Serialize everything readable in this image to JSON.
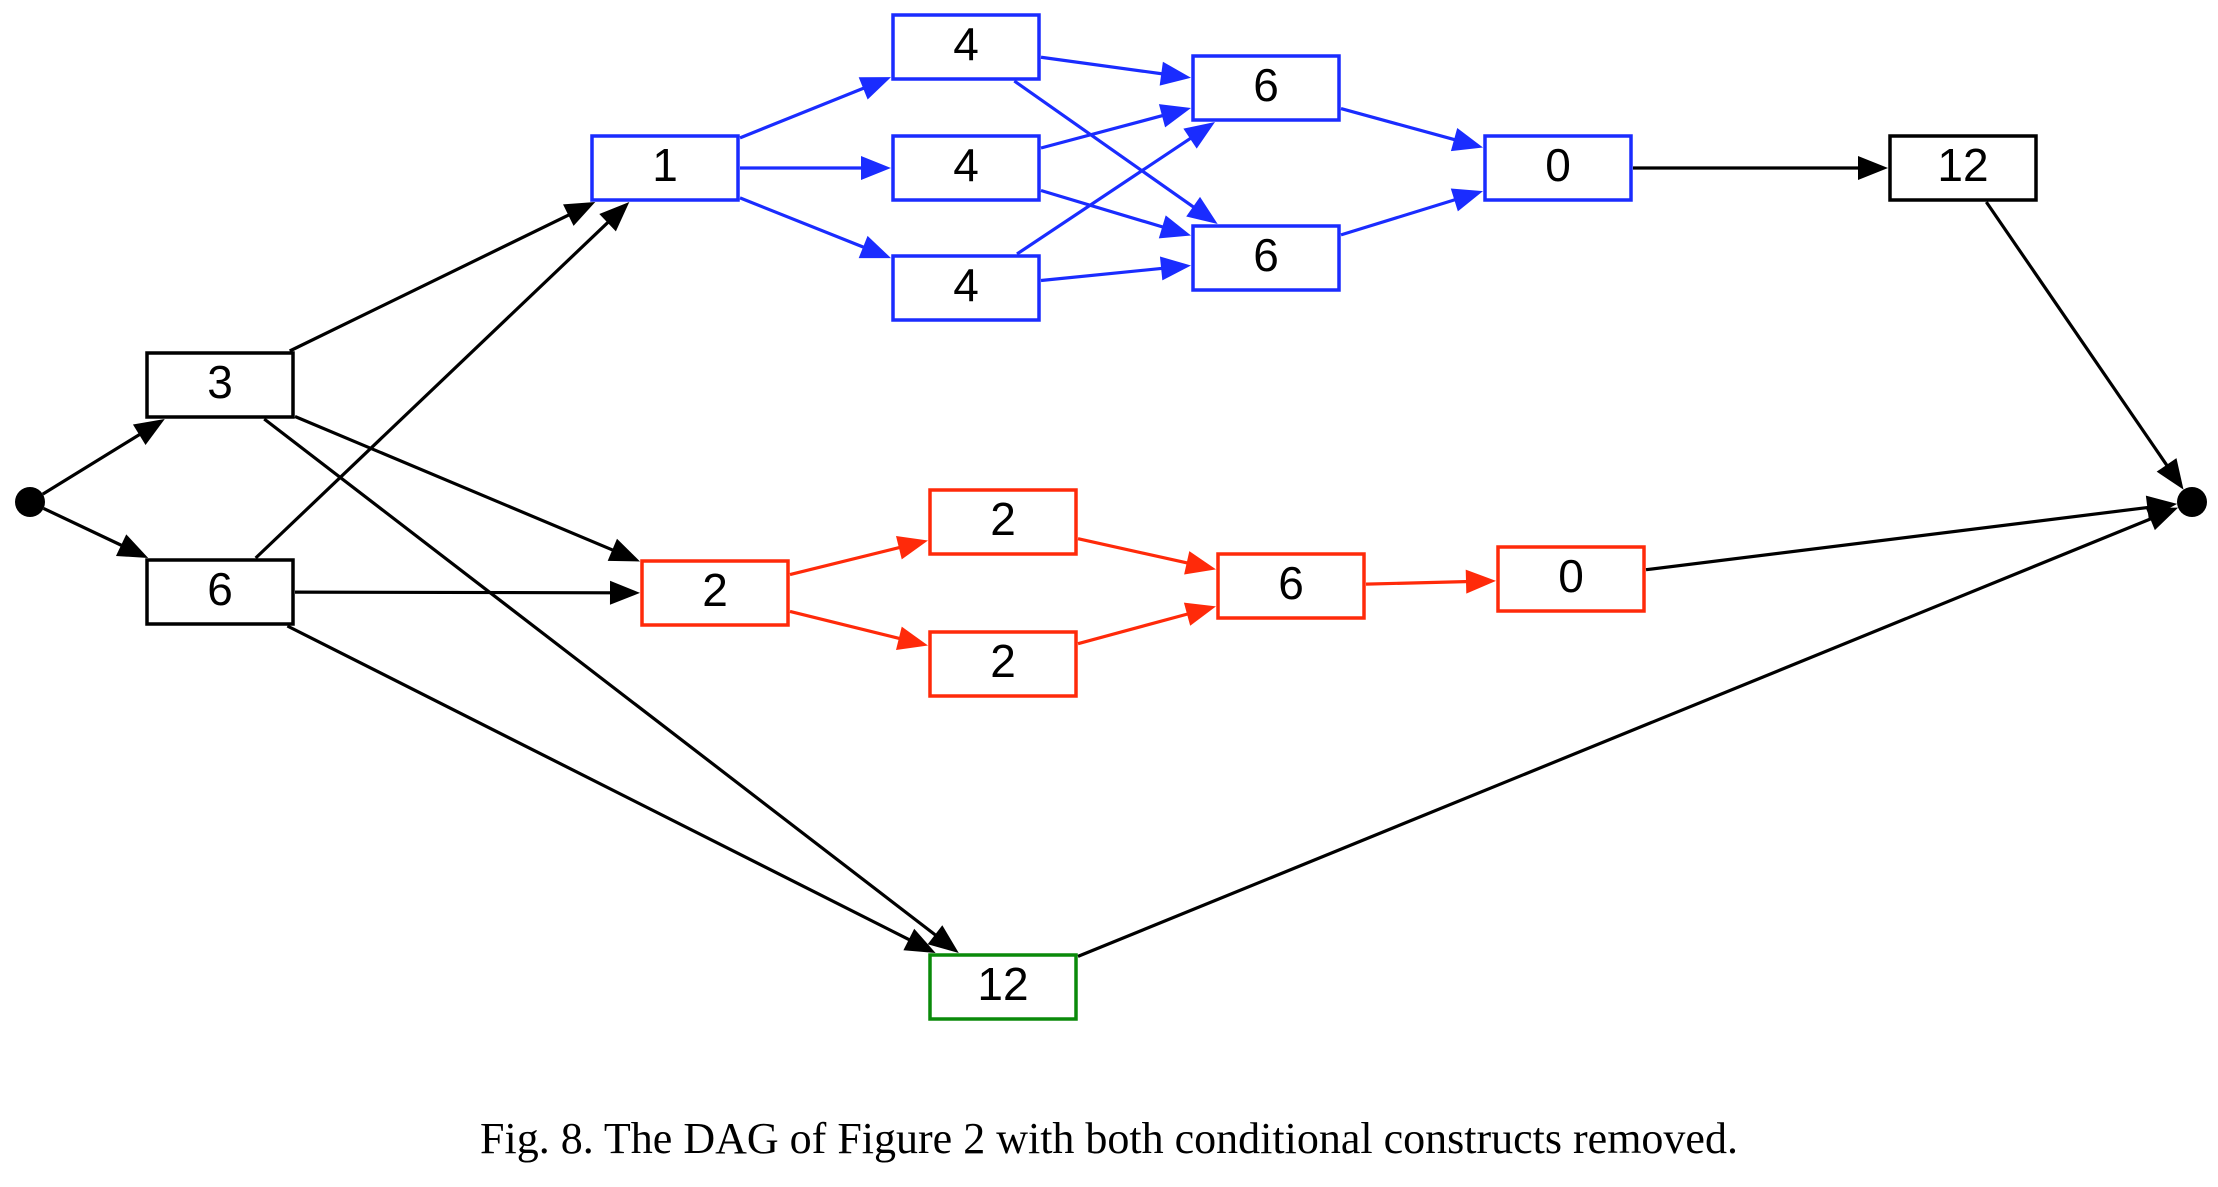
{
  "caption": "Fig. 8.  The DAG of Figure 2 with both conditional constructs removed.",
  "colors": {
    "black": "#000000",
    "blue": "#1a2cff",
    "red": "#ff2a0a",
    "green": "#0a8a0a"
  },
  "nodes": [
    {
      "id": "src",
      "type": "terminal",
      "color": "black"
    },
    {
      "id": "a3",
      "label": "3",
      "color": "black"
    },
    {
      "id": "b6",
      "label": "6",
      "color": "black"
    },
    {
      "id": "c1",
      "label": "1",
      "color": "blue"
    },
    {
      "id": "d4a",
      "label": "4",
      "color": "blue"
    },
    {
      "id": "d4b",
      "label": "4",
      "color": "blue"
    },
    {
      "id": "d4c",
      "label": "4",
      "color": "blue"
    },
    {
      "id": "e6a",
      "label": "6",
      "color": "blue"
    },
    {
      "id": "e6b",
      "label": "6",
      "color": "blue"
    },
    {
      "id": "f0",
      "label": "0",
      "color": "blue"
    },
    {
      "id": "g12",
      "label": "12",
      "color": "black"
    },
    {
      "id": "r2",
      "label": "2",
      "color": "red"
    },
    {
      "id": "r2a",
      "label": "2",
      "color": "red"
    },
    {
      "id": "r2b",
      "label": "2",
      "color": "red"
    },
    {
      "id": "r6",
      "label": "6",
      "color": "red"
    },
    {
      "id": "r0",
      "label": "0",
      "color": "red"
    },
    {
      "id": "h12",
      "label": "12",
      "color": "green"
    },
    {
      "id": "sink",
      "type": "terminal",
      "color": "black"
    }
  ],
  "edges": [
    {
      "from": "src",
      "to": "a3",
      "color": "black"
    },
    {
      "from": "src",
      "to": "b6",
      "color": "black"
    },
    {
      "from": "a3",
      "to": "c1",
      "color": "black"
    },
    {
      "from": "a3",
      "to": "r2",
      "color": "black"
    },
    {
      "from": "a3",
      "to": "h12",
      "color": "black"
    },
    {
      "from": "b6",
      "to": "c1",
      "color": "black"
    },
    {
      "from": "b6",
      "to": "r2",
      "color": "black"
    },
    {
      "from": "b6",
      "to": "h12",
      "color": "black"
    },
    {
      "from": "c1",
      "to": "d4a",
      "color": "blue"
    },
    {
      "from": "c1",
      "to": "d4b",
      "color": "blue"
    },
    {
      "from": "c1",
      "to": "d4c",
      "color": "blue"
    },
    {
      "from": "d4a",
      "to": "e6a",
      "color": "blue"
    },
    {
      "from": "d4a",
      "to": "e6b",
      "color": "blue"
    },
    {
      "from": "d4b",
      "to": "e6a",
      "color": "blue"
    },
    {
      "from": "d4b",
      "to": "e6b",
      "color": "blue"
    },
    {
      "from": "d4c",
      "to": "e6a",
      "color": "blue"
    },
    {
      "from": "d4c",
      "to": "e6b",
      "color": "blue"
    },
    {
      "from": "e6a",
      "to": "f0",
      "color": "blue"
    },
    {
      "from": "e6b",
      "to": "f0",
      "color": "blue"
    },
    {
      "from": "f0",
      "to": "g12",
      "color": "black"
    },
    {
      "from": "g12",
      "to": "sink",
      "color": "black"
    },
    {
      "from": "r2",
      "to": "r2a",
      "color": "red"
    },
    {
      "from": "r2",
      "to": "r2b",
      "color": "red"
    },
    {
      "from": "r2a",
      "to": "r6",
      "color": "red"
    },
    {
      "from": "r2b",
      "to": "r6",
      "color": "red"
    },
    {
      "from": "r6",
      "to": "r0",
      "color": "red"
    },
    {
      "from": "r0",
      "to": "sink",
      "color": "black"
    },
    {
      "from": "h12",
      "to": "sink",
      "color": "black"
    }
  ]
}
